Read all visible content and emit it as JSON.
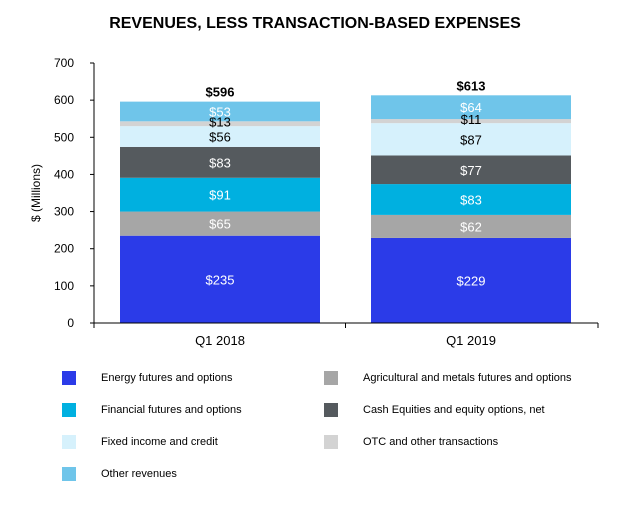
{
  "chart_data": {
    "type": "bar",
    "stacked": true,
    "title": "REVENUES, LESS TRANSACTION-BASED EXPENSES",
    "ylabel": "$ (Millions)",
    "xlabel": "",
    "ylim": [
      0,
      700
    ],
    "yticks": [
      0,
      100,
      200,
      300,
      400,
      500,
      600,
      700
    ],
    "categories": [
      "Q1 2018",
      "Q1 2019"
    ],
    "totals": [
      "$596",
      "$613"
    ],
    "grid": false,
    "legend_position": "bottom",
    "series": [
      {
        "name": "Energy futures and options",
        "values": [
          235,
          229
        ],
        "labels": [
          "$235",
          "$229"
        ],
        "color": "#2b3be8",
        "label_color": "#ffffff"
      },
      {
        "name": "Agricultural and metals futures and options",
        "values": [
          65,
          62
        ],
        "labels": [
          "$65",
          "$62"
        ],
        "color": "#a6a6a6",
        "label_color": "#ffffff"
      },
      {
        "name": "Financial futures and options",
        "values": [
          91,
          83
        ],
        "labels": [
          "$91",
          "$83"
        ],
        "color": "#00b0e0",
        "label_color": "#ffffff"
      },
      {
        "name": "Cash Equities and equity options, net",
        "values": [
          83,
          77
        ],
        "labels": [
          "$83",
          "$77"
        ],
        "color": "#555a5e",
        "label_color": "#ffffff"
      },
      {
        "name": "Fixed income and credit",
        "values": [
          56,
          87
        ],
        "labels": [
          "$56",
          "$87"
        ],
        "color": "#d6f1fc",
        "label_color": "#000000"
      },
      {
        "name": "OTC and other transactions",
        "values": [
          13,
          11
        ],
        "labels": [
          "$13",
          "$11"
        ],
        "color": "#d3d3d3",
        "label_color": "#000000"
      },
      {
        "name": "Other revenues",
        "values": [
          53,
          64
        ],
        "labels": [
          "$53",
          "$64"
        ],
        "color": "#6fc5ea",
        "label_color": "#ffffff"
      }
    ]
  }
}
